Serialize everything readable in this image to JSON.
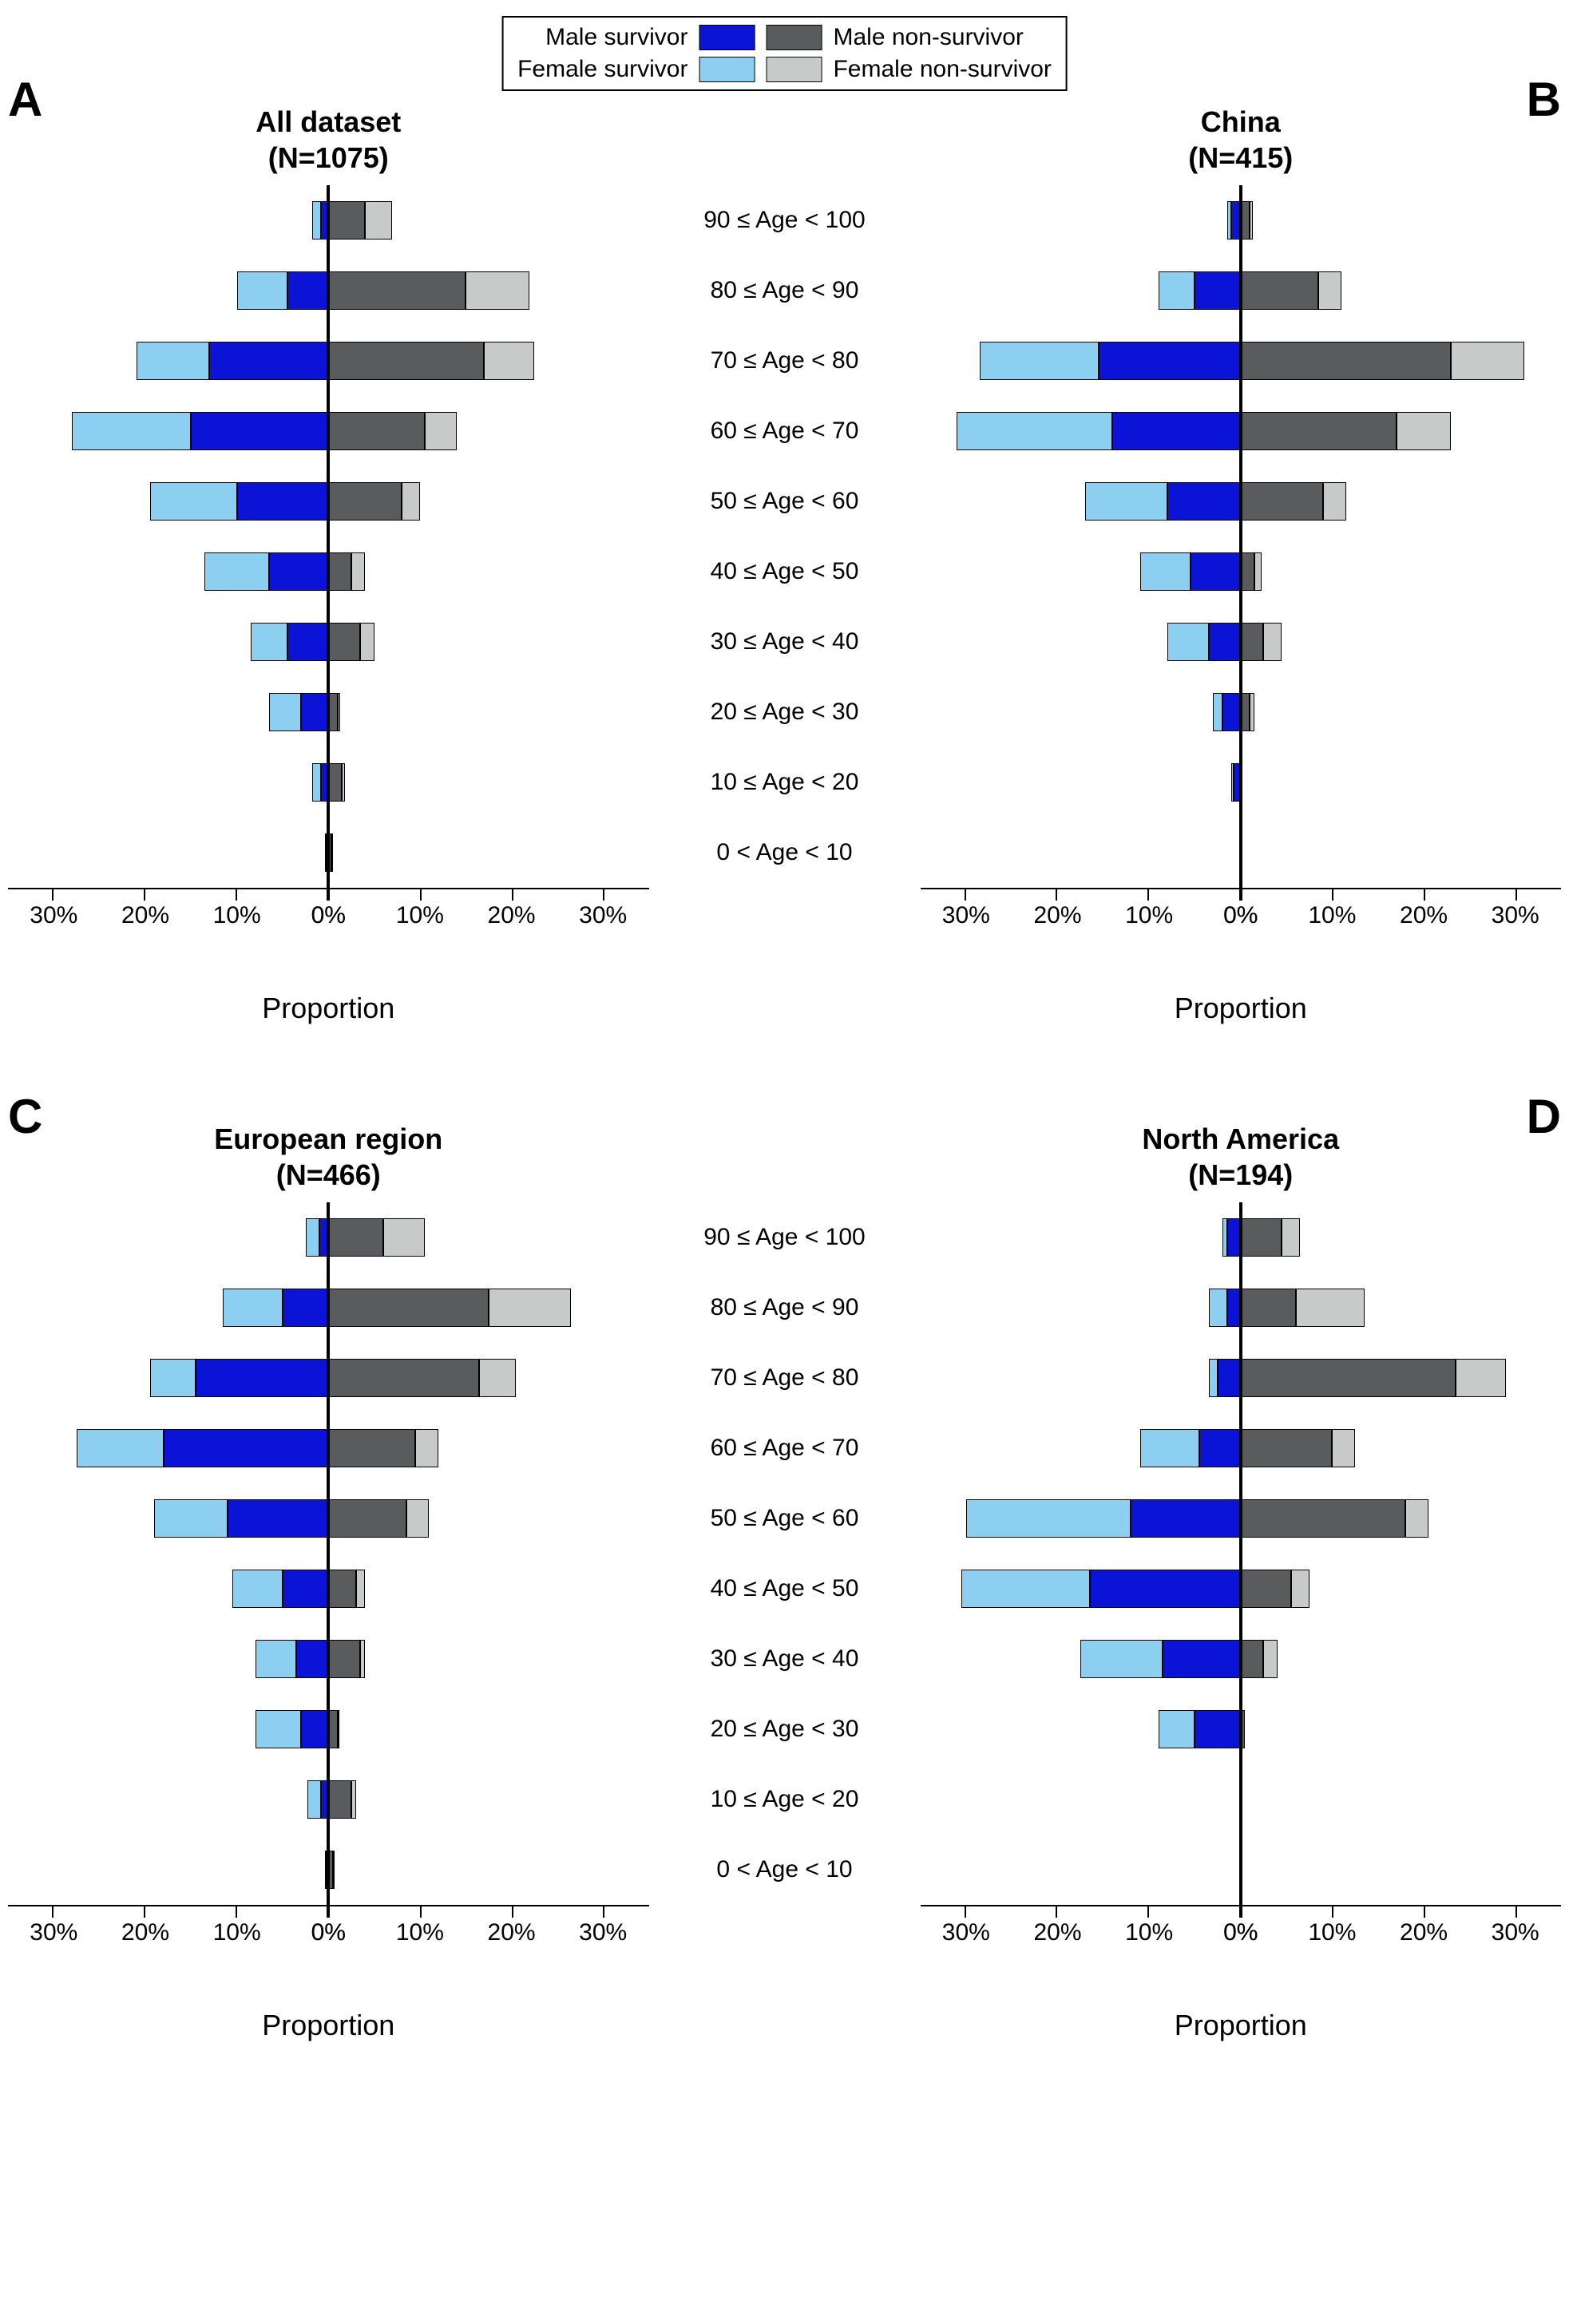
{
  "colors": {
    "male_survivor": "#0a13d6",
    "male_nonsurvivor": "#5a5b5c",
    "female_survivor": "#8dcff0",
    "female_nonsurvivor": "#c8c9c9",
    "background": "#ffffff",
    "axis": "#000000",
    "border": "#000000"
  },
  "legend": {
    "male_survivor": "Male survivor",
    "male_nonsurvivor": "Male non-survivor",
    "female_survivor": "Female survivor",
    "female_nonsurvivor": "Female non-survivor"
  },
  "age_labels": [
    "90 ≤ Age < 100",
    "80 ≤ Age < 90",
    "70 ≤ Age < 80",
    "60 ≤ Age < 70",
    "50 ≤ Age < 60",
    "40 ≤ Age < 50",
    "30 ≤ Age < 40",
    "20 ≤ Age < 30",
    "10 ≤ Age < 20",
    "0 < Age < 10"
  ],
  "axis_label": "Proportion",
  "xtick_values": [
    0,
    10,
    20,
    30
  ],
  "xlim_max": 35,
  "panels": [
    {
      "letter": "A",
      "letter_side": "left",
      "title_line1": "All dataset",
      "title_line2": "(N=1075)",
      "rows": [
        {
          "fs": 1.0,
          "ms": 0.8,
          "mns": 4.0,
          "fns": 3.0
        },
        {
          "fs": 5.5,
          "ms": 4.5,
          "mns": 15.0,
          "fns": 7.0
        },
        {
          "fs": 8.0,
          "ms": 13.0,
          "mns": 17.0,
          "fns": 5.5
        },
        {
          "fs": 13.0,
          "ms": 15.0,
          "mns": 10.5,
          "fns": 3.5
        },
        {
          "fs": 9.5,
          "ms": 10.0,
          "mns": 8.0,
          "fns": 2.0
        },
        {
          "fs": 7.0,
          "ms": 6.5,
          "mns": 2.5,
          "fns": 1.5
        },
        {
          "fs": 4.0,
          "ms": 4.5,
          "mns": 3.5,
          "fns": 1.5
        },
        {
          "fs": 3.5,
          "ms": 3.0,
          "mns": 1.0,
          "fns": 0.3
        },
        {
          "fs": 1.0,
          "ms": 0.8,
          "mns": 1.5,
          "fns": 0.3
        },
        {
          "fs": 0.1,
          "ms": 0.1,
          "mns": 0.3,
          "fns": 0.1
        }
      ]
    },
    {
      "letter": "B",
      "letter_side": "right",
      "title_line1": "China",
      "title_line2": "(N=415)",
      "rows": [
        {
          "fs": 0.5,
          "ms": 1.0,
          "mns": 1.0,
          "fns": 0.3
        },
        {
          "fs": 4.0,
          "ms": 5.0,
          "mns": 8.5,
          "fns": 2.5
        },
        {
          "fs": 13.0,
          "ms": 15.5,
          "mns": 23.0,
          "fns": 8.0
        },
        {
          "fs": 17.0,
          "ms": 14.0,
          "mns": 17.0,
          "fns": 6.0
        },
        {
          "fs": 9.0,
          "ms": 8.0,
          "mns": 9.0,
          "fns": 2.5
        },
        {
          "fs": 5.5,
          "ms": 5.5,
          "mns": 1.5,
          "fns": 0.8
        },
        {
          "fs": 4.5,
          "ms": 3.5,
          "mns": 2.5,
          "fns": 2.0
        },
        {
          "fs": 1.0,
          "ms": 2.0,
          "mns": 1.0,
          "fns": 0.5
        },
        {
          "fs": 0.2,
          "ms": 0.8,
          "mns": 0.1,
          "fns": 0.0
        },
        {
          "fs": 0.0,
          "ms": 0.0,
          "mns": 0.0,
          "fns": 0.0
        }
      ]
    },
    {
      "letter": "C",
      "letter_side": "left",
      "title_line1": "European region",
      "title_line2": "(N=466)",
      "rows": [
        {
          "fs": 1.5,
          "ms": 1.0,
          "mns": 6.0,
          "fns": 4.5
        },
        {
          "fs": 6.5,
          "ms": 5.0,
          "mns": 17.5,
          "fns": 9.0
        },
        {
          "fs": 5.0,
          "ms": 14.5,
          "mns": 16.5,
          "fns": 4.0
        },
        {
          "fs": 9.5,
          "ms": 18.0,
          "mns": 9.5,
          "fns": 2.5
        },
        {
          "fs": 8.0,
          "ms": 11.0,
          "mns": 8.5,
          "fns": 2.5
        },
        {
          "fs": 5.5,
          "ms": 5.0,
          "mns": 3.0,
          "fns": 1.0
        },
        {
          "fs": 4.5,
          "ms": 3.5,
          "mns": 3.5,
          "fns": 0.5
        },
        {
          "fs": 5.0,
          "ms": 3.0,
          "mns": 1.0,
          "fns": 0.2
        },
        {
          "fs": 1.5,
          "ms": 0.8,
          "mns": 2.5,
          "fns": 0.5
        },
        {
          "fs": 0.1,
          "ms": 0.1,
          "mns": 0.5,
          "fns": 0.1
        }
      ]
    },
    {
      "letter": "D",
      "letter_side": "right",
      "title_line1": "North America",
      "title_line2": "(N=194)",
      "rows": [
        {
          "fs": 0.5,
          "ms": 1.5,
          "mns": 4.5,
          "fns": 2.0
        },
        {
          "fs": 2.0,
          "ms": 1.5,
          "mns": 6.0,
          "fns": 7.5
        },
        {
          "fs": 1.0,
          "ms": 2.5,
          "mns": 23.5,
          "fns": 5.5
        },
        {
          "fs": 6.5,
          "ms": 4.5,
          "mns": 10.0,
          "fns": 2.5
        },
        {
          "fs": 18.0,
          "ms": 12.0,
          "mns": 18.0,
          "fns": 2.5
        },
        {
          "fs": 14.0,
          "ms": 16.5,
          "mns": 5.5,
          "fns": 2.0
        },
        {
          "fs": 9.0,
          "ms": 8.5,
          "mns": 2.5,
          "fns": 1.5
        },
        {
          "fs": 4.0,
          "ms": 5.0,
          "mns": 0.5,
          "fns": 0.0
        },
        {
          "fs": 0.0,
          "ms": 0.0,
          "mns": 0.0,
          "fns": 0.0
        },
        {
          "fs": 0.0,
          "ms": 0.0,
          "mns": 0.0,
          "fns": 0.0
        }
      ]
    }
  ]
}
